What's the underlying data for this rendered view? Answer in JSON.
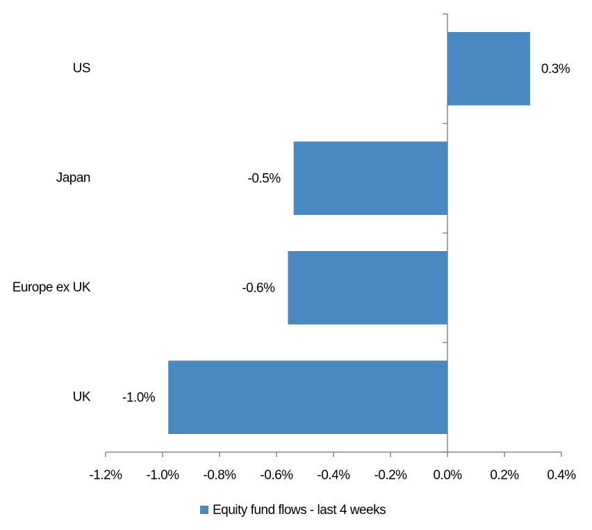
{
  "chart_data": {
    "type": "bar",
    "orientation": "horizontal",
    "categories": [
      "US",
      "Japan",
      "Europe ex UK",
      "UK"
    ],
    "series": [
      {
        "name": "Equity fund flows - last 4 weeks",
        "color": "#4a89c0",
        "values": [
          0.29,
          -0.54,
          -0.56,
          -0.98
        ],
        "value_labels": [
          "0.3%",
          "-0.5%",
          "-0.6%",
          "-1.0%"
        ]
      }
    ],
    "xlim": [
      -1.2,
      0.4
    ],
    "xticks": [
      {
        "value": -1.2,
        "label": "-1.2%"
      },
      {
        "value": -1.0,
        "label": "-1.0%"
      },
      {
        "value": -0.8,
        "label": "-0.8%"
      },
      {
        "value": -0.6,
        "label": "-0.6%"
      },
      {
        "value": -0.4,
        "label": "-0.4%"
      },
      {
        "value": -0.2,
        "label": "-0.2%"
      },
      {
        "value": 0,
        "label": "0.0%"
      },
      {
        "value": 0.2,
        "label": "0.2%"
      },
      {
        "value": 0.4,
        "label": "0.4%"
      }
    ],
    "grid": false,
    "legend": "bottom"
  }
}
